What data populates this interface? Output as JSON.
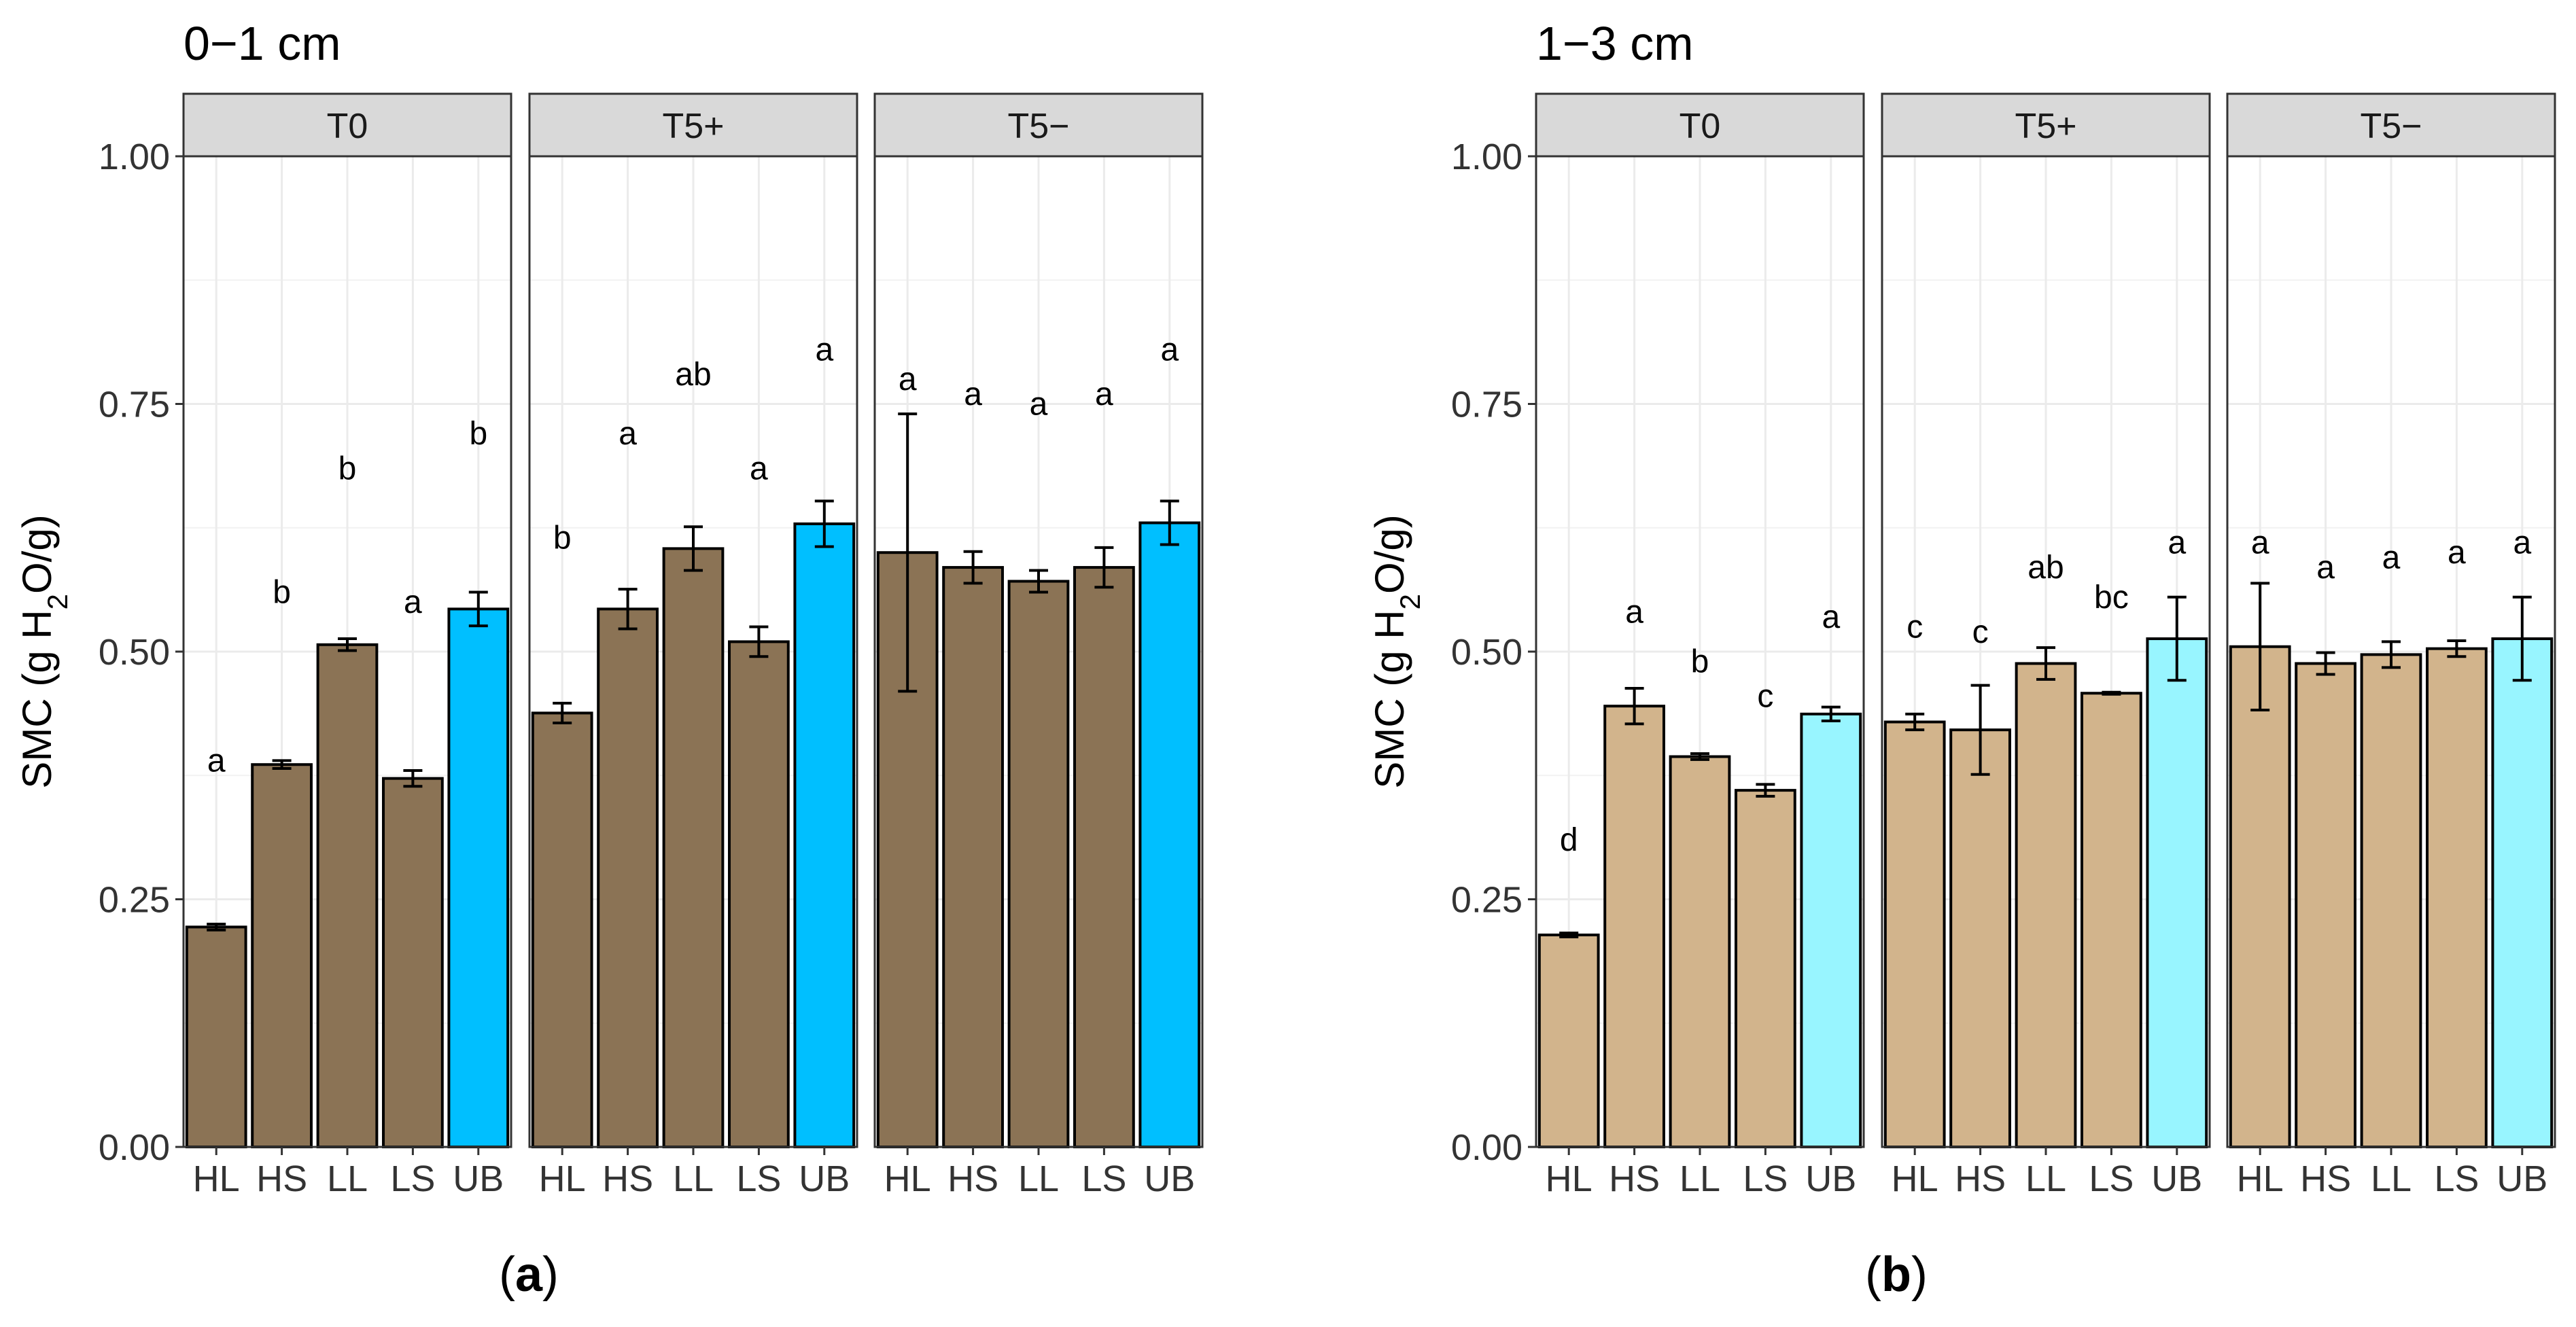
{
  "chart_data": [
    {
      "type": "bar",
      "title": "0−1 cm",
      "panel_label": "(a)",
      "ylabel_parts": [
        "SMC (g H",
        "2",
        "O/g)"
      ],
      "ylim": [
        0,
        1.0
      ],
      "yticks": [
        "0.00",
        "0.25",
        "0.50",
        "0.75",
        "1.00"
      ],
      "ytick_values": [
        0,
        0.25,
        0.5,
        0.75,
        1.0
      ],
      "grid": true,
      "categories": [
        "HL",
        "HS",
        "LL",
        "LS",
        "UB"
      ],
      "colors": {
        "soil": "#8b7355",
        "ub": "#00bfff"
      },
      "facets": [
        {
          "name": "T0",
          "values": [
            0.222,
            0.386,
            0.507,
            0.372,
            0.543
          ],
          "errors": [
            0.003,
            0.004,
            0.006,
            0.008,
            0.017
          ],
          "letters": [
            "a",
            "b",
            "b",
            "a",
            "b"
          ],
          "letter_y": [
            0.39,
            0.56,
            0.685,
            0.55,
            0.72
          ]
        },
        {
          "name": "T5+",
          "values": [
            0.438,
            0.543,
            0.604,
            0.51,
            0.629
          ],
          "errors": [
            0.01,
            0.02,
            0.022,
            0.015,
            0.023
          ],
          "letters": [
            "b",
            "a",
            "ab",
            "a",
            "a"
          ],
          "letter_y": [
            0.615,
            0.72,
            0.78,
            0.685,
            0.805
          ]
        },
        {
          "name": "T5−",
          "values": [
            0.6,
            0.585,
            0.571,
            0.585,
            0.63
          ],
          "errors": [
            0.14,
            0.016,
            0.011,
            0.02,
            0.022
          ],
          "letters": [
            "a",
            "a",
            "a",
            "a",
            "a"
          ],
          "letter_y": [
            0.775,
            0.76,
            0.75,
            0.76,
            0.805
          ]
        }
      ]
    },
    {
      "type": "bar",
      "title": "1−3 cm",
      "panel_label": "(b)",
      "ylabel_parts": [
        "SMC (g H",
        "2",
        "O/g)"
      ],
      "ylim": [
        0,
        1.0
      ],
      "yticks": [
        "0.00",
        "0.25",
        "0.50",
        "0.75",
        "1.00"
      ],
      "ytick_values": [
        0,
        0.25,
        0.5,
        0.75,
        1.0
      ],
      "grid": true,
      "categories": [
        "HL",
        "HS",
        "LL",
        "LS",
        "UB"
      ],
      "colors": {
        "soil": "#d2b48c",
        "ub": "#98f5ff"
      },
      "facets": [
        {
          "name": "T0",
          "values": [
            0.214,
            0.445,
            0.394,
            0.36,
            0.437
          ],
          "errors": [
            0.002,
            0.018,
            0.003,
            0.006,
            0.007
          ],
          "letters": [
            "d",
            "a",
            "b",
            "c",
            "a"
          ],
          "letter_y": [
            0.31,
            0.54,
            0.49,
            0.455,
            0.535
          ]
        },
        {
          "name": "T5+",
          "values": [
            0.429,
            0.421,
            0.488,
            0.458,
            0.513
          ],
          "errors": [
            0.008,
            0.045,
            0.016,
            0.001,
            0.042
          ],
          "letters": [
            "c",
            "c",
            "ab",
            "bc",
            "a"
          ],
          "letter_y": [
            0.525,
            0.52,
            0.585,
            0.555,
            0.61
          ]
        },
        {
          "name": "T5−",
          "values": [
            0.505,
            0.488,
            0.497,
            0.503,
            0.513
          ],
          "errors": [
            0.064,
            0.011,
            0.013,
            0.008,
            0.042
          ],
          "letters": [
            "a",
            "a",
            "a",
            "a",
            "a"
          ],
          "letter_y": [
            0.61,
            0.585,
            0.595,
            0.6,
            0.61
          ]
        }
      ]
    }
  ]
}
